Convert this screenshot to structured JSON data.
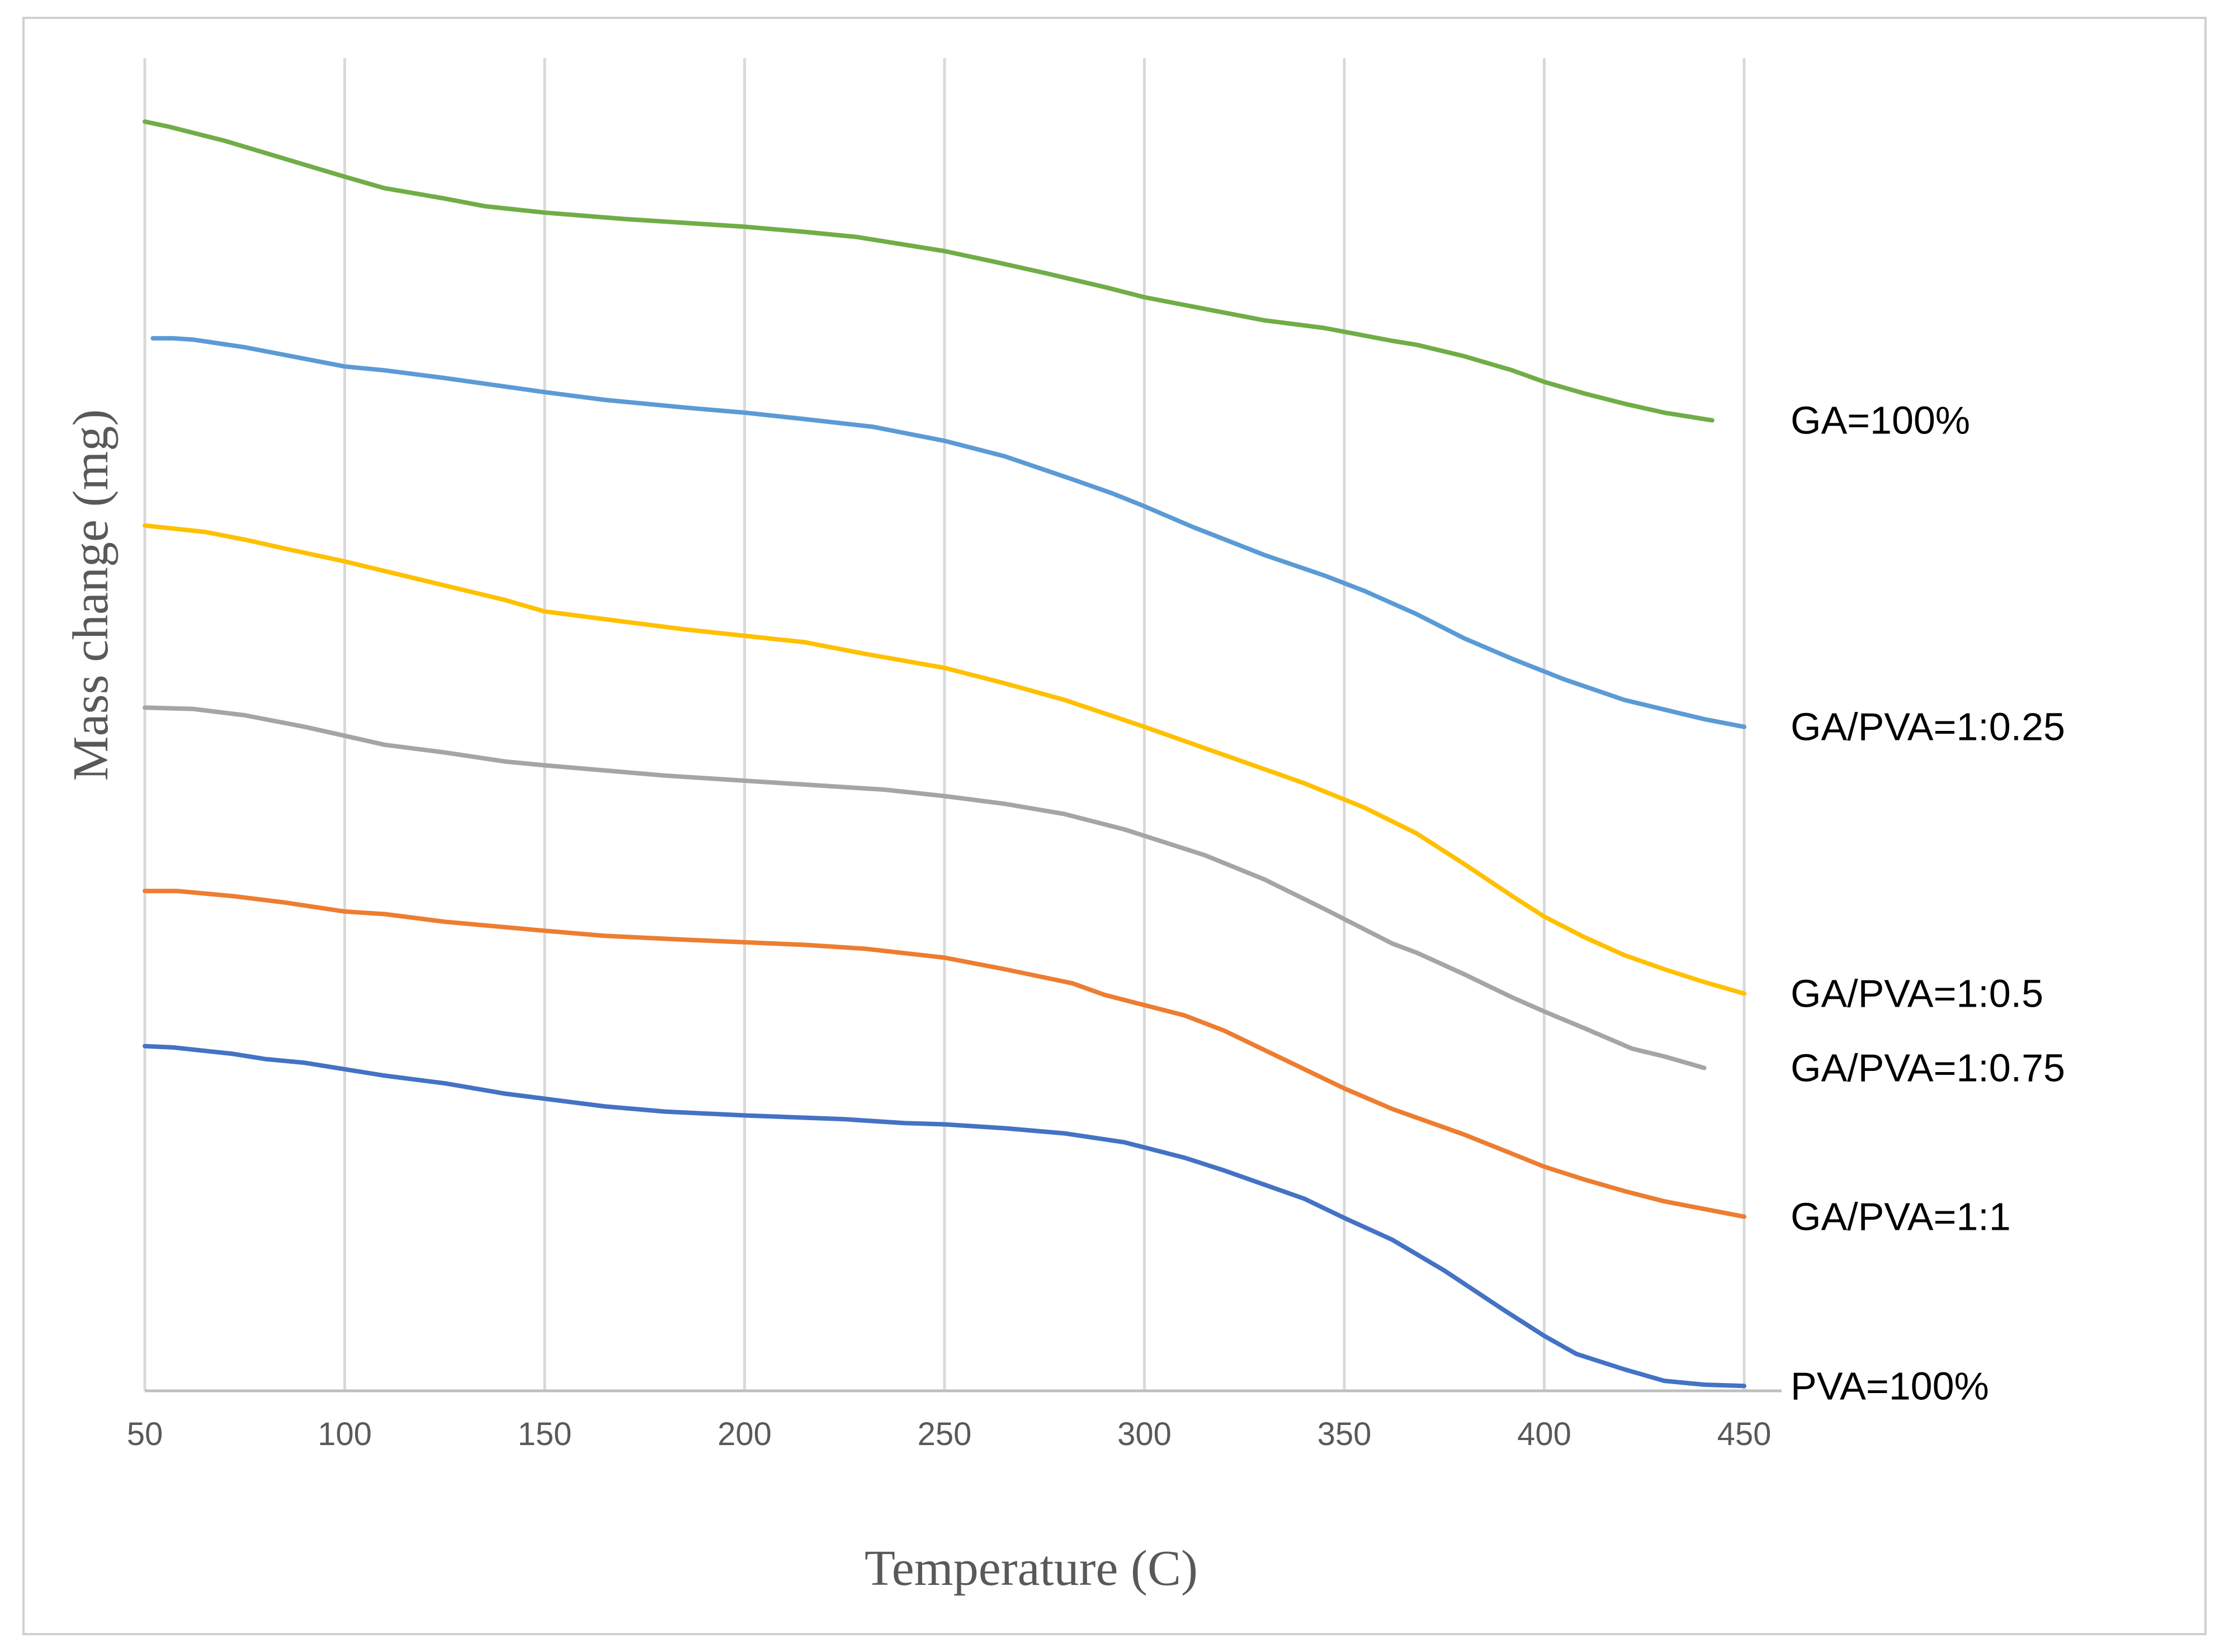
{
  "chart_data": {
    "type": "line",
    "title": "",
    "xlabel": "Temperature (C)",
    "ylabel": "Mass change (mg)",
    "xlim": [
      50,
      450
    ],
    "x_ticks": [
      50,
      100,
      150,
      200,
      250,
      300,
      350,
      400,
      450
    ],
    "ylim": [
      0,
      100
    ],
    "grid": "vertical",
    "legend": "none",
    "series": [
      {
        "name": "GA=100%",
        "color": "#70ad47",
        "x": [
          50,
          56,
          70,
          85,
          100,
          110,
          125,
          135,
          150,
          170,
          185,
          200,
          215,
          228,
          240,
          250,
          262,
          275,
          290,
          300,
          315,
          330,
          345,
          362,
          368,
          380,
          392,
          400,
          410,
          420,
          430,
          442
        ],
        "y": [
          96.8,
          96.4,
          95.3,
          93.9,
          92.5,
          91.6,
          90.8,
          90.2,
          89.7,
          89.2,
          88.9,
          88.6,
          88.2,
          87.8,
          87.2,
          86.7,
          85.9,
          85.0,
          83.9,
          83.1,
          82.2,
          81.3,
          80.7,
          79.7,
          79.4,
          78.5,
          77.4,
          76.5,
          75.6,
          74.8,
          74.1,
          73.5
        ]
      },
      {
        "name": "GA/PVA=1:0.25",
        "color": "#5b9bd5",
        "x": [
          52,
          57,
          62,
          75,
          85,
          100,
          110,
          125,
          150,
          165,
          185,
          200,
          215,
          232,
          250,
          265,
          282,
          292,
          300,
          312,
          330,
          345,
          355,
          368,
          380,
          392,
          405,
          420,
          432,
          440,
          450
        ],
        "y": [
          79.9,
          79.9,
          79.8,
          79.2,
          78.6,
          77.7,
          77.4,
          76.8,
          75.7,
          75.1,
          74.5,
          74.1,
          73.6,
          73.0,
          71.9,
          70.7,
          68.9,
          67.8,
          66.8,
          65.2,
          63.0,
          61.4,
          60.2,
          58.4,
          56.5,
          54.9,
          53.3,
          51.7,
          50.8,
          50.2,
          49.6
        ]
      },
      {
        "name": "GA/PVA=1:0.5",
        "color": "#ffc000",
        "x": [
          50,
          65,
          75,
          85,
          100,
          120,
          140,
          150,
          165,
          185,
          200,
          215,
          230,
          250,
          265,
          280,
          300,
          320,
          340,
          355,
          368,
          380,
          392,
          400,
          410,
          420,
          430,
          440,
          450
        ],
        "y": [
          65.3,
          64.8,
          64.2,
          63.5,
          62.5,
          61.0,
          59.5,
          58.6,
          58.0,
          57.2,
          56.7,
          56.2,
          55.3,
          54.2,
          53.0,
          51.7,
          49.6,
          47.4,
          45.2,
          43.3,
          41.3,
          38.9,
          36.4,
          34.8,
          33.2,
          31.8,
          30.7,
          29.7,
          28.8
        ]
      },
      {
        "name": "GA/PVA=1:0.75",
        "color": "#a5a5a5",
        "x": [
          50,
          62,
          75,
          90,
          100,
          110,
          125,
          140,
          150,
          165,
          180,
          200,
          215,
          235,
          250,
          265,
          280,
          295,
          300,
          315,
          330,
          345,
          362,
          368,
          380,
          392,
          400,
          410,
          422,
          430,
          440
        ],
        "y": [
          51.1,
          51.0,
          50.5,
          49.6,
          48.9,
          48.2,
          47.6,
          46.9,
          46.6,
          46.2,
          45.8,
          45.4,
          45.1,
          44.7,
          44.2,
          43.6,
          42.8,
          41.6,
          41.1,
          39.6,
          37.7,
          35.4,
          32.7,
          32.0,
          30.3,
          28.5,
          27.4,
          26.1,
          24.5,
          23.9,
          23.0
        ]
      },
      {
        "name": "GA/PVA=1:1",
        "color": "#ed7d31",
        "x": [
          50,
          58,
          72,
          85,
          100,
          110,
          125,
          150,
          165,
          185,
          200,
          215,
          230,
          250,
          265,
          282,
          290,
          300,
          310,
          320,
          330,
          340,
          350,
          362,
          380,
          392,
          400,
          410,
          420,
          430,
          440,
          450
        ],
        "y": [
          36.8,
          36.8,
          36.4,
          35.9,
          35.2,
          35.0,
          34.4,
          33.7,
          33.3,
          33.0,
          32.8,
          32.6,
          32.3,
          31.6,
          30.7,
          29.6,
          28.7,
          27.9,
          27.1,
          25.9,
          24.4,
          22.9,
          21.4,
          19.8,
          17.8,
          16.3,
          15.3,
          14.3,
          13.4,
          12.6,
          12.0,
          11.4
        ]
      },
      {
        "name": "PVA=100%",
        "color": "#4472c4",
        "x": [
          50,
          57,
          72,
          80,
          90,
          100,
          110,
          125,
          140,
          150,
          165,
          180,
          200,
          225,
          240,
          250,
          265,
          280,
          295,
          300,
          310,
          320,
          330,
          340,
          350,
          362,
          375,
          390,
          400,
          408,
          420,
          430,
          440,
          450
        ],
        "y": [
          24.7,
          24.6,
          24.1,
          23.7,
          23.4,
          22.9,
          22.4,
          21.8,
          21.0,
          20.6,
          20.0,
          19.6,
          19.3,
          19.0,
          18.7,
          18.6,
          18.3,
          17.9,
          17.2,
          16.8,
          16.0,
          15.0,
          13.9,
          12.8,
          11.3,
          9.6,
          7.2,
          4.1,
          2.1,
          0.7,
          -0.5,
          -1.4,
          -1.7,
          -1.8
        ]
      }
    ]
  }
}
